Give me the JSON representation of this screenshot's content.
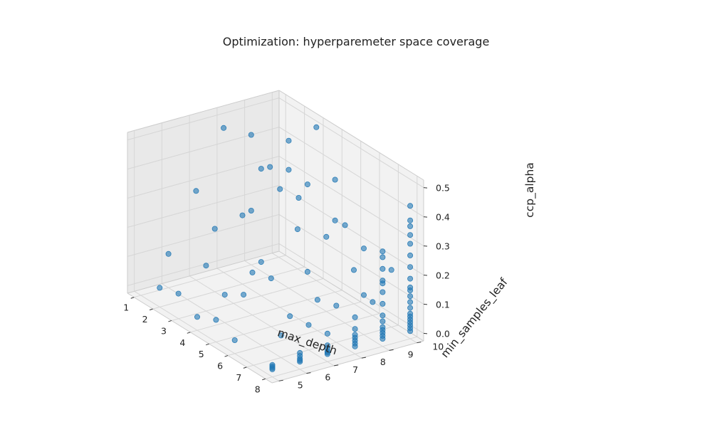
{
  "chart_data": {
    "type": "scatter",
    "projection": "3d",
    "title": "Optimization: hyperparemeter space coverage",
    "xlabel": "max_depth",
    "ylabel": "min_samples_leaf",
    "zlabel": "ccp_alpha",
    "xlim": [
      0.65,
      8.35
    ],
    "ylim": [
      4.75,
      10.25
    ],
    "zlim": [
      -0.026,
      0.526
    ],
    "xticks": [
      "1",
      "2",
      "3",
      "4",
      "5",
      "6",
      "7",
      "8"
    ],
    "yticks": [
      "5",
      "6",
      "7",
      "8",
      "9",
      "10"
    ],
    "zticks": [
      "0.0",
      "0.1",
      "0.2",
      "0.3",
      "0.4",
      "0.5"
    ],
    "grid": true,
    "marker_color": "#1f77b4",
    "marker_alpha": 0.6,
    "points": [
      [
        1,
        8,
        0.47
      ],
      [
        1,
        9,
        0.16
      ],
      [
        1,
        6,
        0.09
      ],
      [
        1,
        7,
        0.28
      ],
      [
        1,
        9,
        0.42
      ],
      [
        2,
        9,
        0.35
      ],
      [
        2,
        7,
        0.19
      ],
      [
        2,
        5,
        0.04
      ],
      [
        2,
        8,
        0.21
      ],
      [
        2,
        10,
        0.11
      ],
      [
        3,
        9,
        0.48
      ],
      [
        3,
        10,
        0.5
      ],
      [
        3,
        8,
        0.41
      ],
      [
        3,
        9,
        0.38
      ],
      [
        3,
        6,
        0.13
      ],
      [
        3,
        8,
        0.09
      ],
      [
        3,
        5,
        0.06
      ],
      [
        4,
        8,
        0.38
      ],
      [
        4,
        9,
        0.37
      ],
      [
        4,
        10,
        0.22
      ],
      [
        4,
        7,
        0.12
      ],
      [
        4,
        6,
        0.07
      ],
      [
        4,
        9,
        0.07
      ],
      [
        4,
        5,
        0.02
      ],
      [
        4,
        10,
        0.36
      ],
      [
        5,
        8,
        0.39
      ],
      [
        5,
        9,
        0.23
      ],
      [
        5,
        7,
        0.14
      ],
      [
        5,
        6,
        0.11
      ],
      [
        5,
        10,
        0.09
      ],
      [
        5,
        5,
        0.05
      ],
      [
        6,
        9,
        0.31
      ],
      [
        6,
        8,
        0.08
      ],
      [
        6,
        7,
        0.05
      ],
      [
        6,
        5,
        0.02
      ],
      [
        6,
        10,
        0.02
      ],
      [
        7,
        9,
        0.27
      ],
      [
        7,
        10,
        0.17
      ],
      [
        7,
        8,
        0.1
      ],
      [
        7,
        7,
        0.06
      ],
      [
        7,
        6,
        0.05
      ],
      [
        7,
        9,
        0.11
      ],
      [
        8,
        10,
        0.15
      ],
      [
        8,
        9,
        0.19
      ],
      [
        8,
        7,
        0.07
      ],
      [
        8,
        8,
        0.03
      ],
      [
        8,
        6,
        0.03
      ],
      [
        8,
        9,
        0.06
      ],
      [
        8,
        10,
        0.05
      ],
      [
        8,
        5,
        0.0
      ],
      [
        8,
        5,
        0.005
      ],
      [
        8,
        5,
        0.01
      ],
      [
        8,
        5,
        0.015
      ],
      [
        8,
        6,
        0.0
      ],
      [
        8,
        6,
        0.005
      ],
      [
        8,
        6,
        0.01
      ],
      [
        8,
        6,
        0.02
      ],
      [
        8,
        7,
        0.0
      ],
      [
        8,
        7,
        0.005
      ],
      [
        8,
        7,
        0.01
      ],
      [
        8,
        7,
        0.02
      ],
      [
        8,
        7,
        0.03
      ],
      [
        8,
        8,
        0.0
      ],
      [
        8,
        8,
        0.01
      ],
      [
        8,
        8,
        0.02
      ],
      [
        8,
        8,
        0.04
      ],
      [
        8,
        8,
        0.06
      ],
      [
        8,
        8,
        0.1
      ],
      [
        8,
        9,
        0.0
      ],
      [
        8,
        9,
        0.01
      ],
      [
        8,
        9,
        0.02
      ],
      [
        8,
        9,
        0.03
      ],
      [
        8,
        9,
        0.04
      ],
      [
        8,
        9,
        0.08
      ],
      [
        8,
        9,
        0.12
      ],
      [
        8,
        9,
        0.16
      ],
      [
        8,
        9,
        0.2
      ],
      [
        8,
        9,
        0.24
      ],
      [
        8,
        9,
        0.28
      ],
      [
        8,
        9,
        0.3
      ],
      [
        8,
        10,
        0.0
      ],
      [
        8,
        10,
        0.01
      ],
      [
        8,
        10,
        0.02
      ],
      [
        8,
        10,
        0.03
      ],
      [
        8,
        10,
        0.04
      ],
      [
        8,
        10,
        0.06
      ],
      [
        8,
        10,
        0.08
      ],
      [
        8,
        10,
        0.1
      ],
      [
        8,
        10,
        0.12
      ],
      [
        8,
        10,
        0.14
      ],
      [
        8,
        10,
        0.18
      ],
      [
        8,
        10,
        0.22
      ],
      [
        8,
        10,
        0.26
      ],
      [
        8,
        10,
        0.3
      ],
      [
        8,
        10,
        0.33
      ],
      [
        8,
        10,
        0.36
      ],
      [
        8,
        10,
        0.38
      ],
      [
        8,
        10,
        0.43
      ]
    ]
  }
}
